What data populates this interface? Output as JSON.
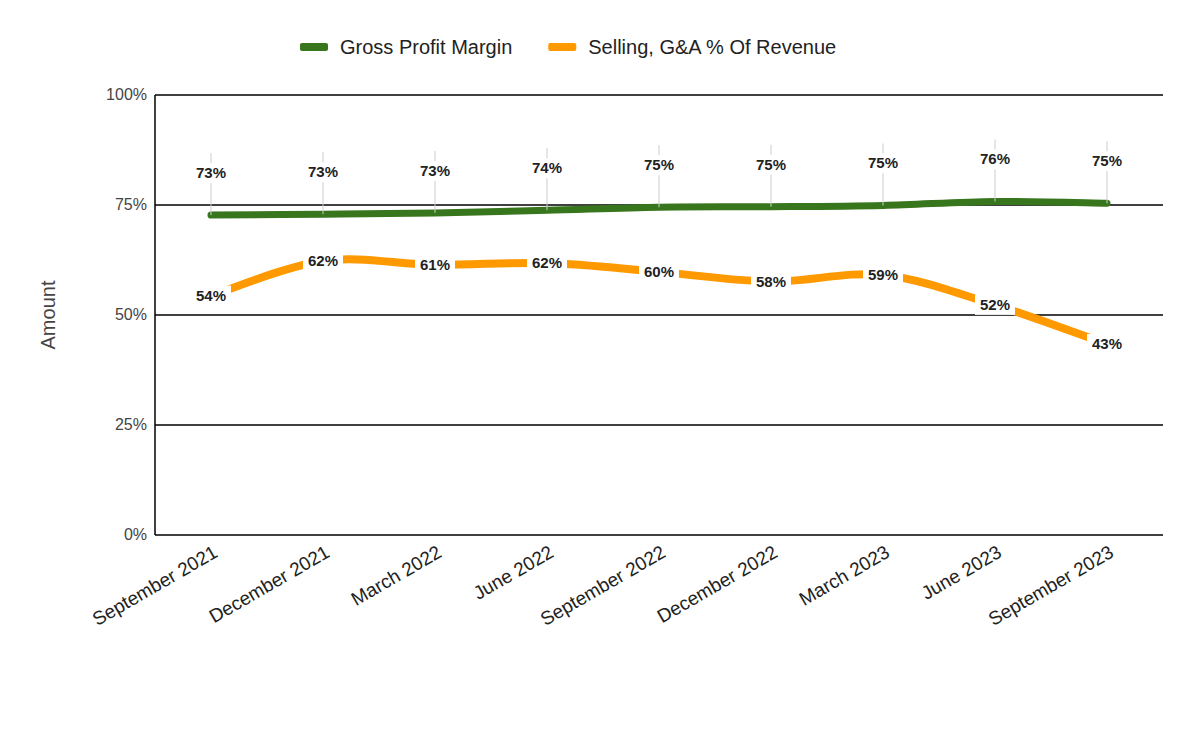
{
  "chart_data": {
    "type": "line",
    "y_label": "Amount",
    "categories": [
      "September 2021",
      "December 2021",
      "March 2022",
      "June 2022",
      "September 2022",
      "December 2022",
      "March 2023",
      "June 2023",
      "September 2023"
    ],
    "series": [
      {
        "name": "Gross Profit Margin",
        "color": "#38761d",
        "values": [
          72.7,
          72.9,
          73.2,
          73.8,
          74.5,
          74.6,
          74.9,
          75.8,
          75.4
        ],
        "value_labels": [
          "73%",
          "73%",
          "73%",
          "74%",
          "75%",
          "75%",
          "75%",
          "76%",
          "75%"
        ]
      },
      {
        "name": "Selling, G&A % Of Revenue",
        "color": "#ff9900",
        "values": [
          54.4,
          62.3,
          61.4,
          61.8,
          59.8,
          57.6,
          59.1,
          52.3,
          43.4
        ],
        "value_labels": [
          "54%",
          "62%",
          "61%",
          "62%",
          "60%",
          "58%",
          "59%",
          "52%",
          "43%"
        ]
      }
    ],
    "ylim": [
      0,
      100
    ],
    "yticks": [
      {
        "value": 0,
        "label": "0%"
      },
      {
        "value": 25,
        "label": "25%"
      },
      {
        "value": 50,
        "label": "50%"
      },
      {
        "value": 75,
        "label": "75%"
      },
      {
        "value": 100,
        "label": "100%"
      }
    ],
    "grid": true,
    "legend": "top",
    "data_labels": true
  }
}
